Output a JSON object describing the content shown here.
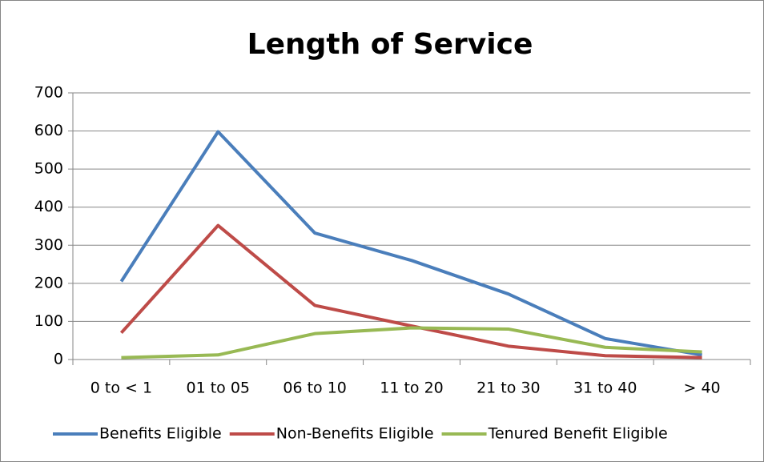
{
  "chart_data": {
    "type": "line",
    "title": "Length of Service",
    "categories": [
      "0 to < 1",
      "01 to 05",
      "06 to 10",
      "11 to 20",
      "21 to 30",
      "31 to 40",
      "> 40"
    ],
    "series": [
      {
        "name": "Benefits Eligible",
        "color": "#4a7ebb",
        "values": [
          205,
          598,
          332,
          260,
          172,
          55,
          12
        ]
      },
      {
        "name": "Non-Benefits Eligible",
        "color": "#be4b48",
        "values": [
          70,
          352,
          142,
          88,
          35,
          10,
          5
        ]
      },
      {
        "name": "Tenured Benefit Eligible",
        "color": "#98b954",
        "values": [
          5,
          12,
          68,
          83,
          80,
          32,
          20
        ]
      }
    ],
    "ylim": [
      0,
      700
    ],
    "yticks": [
      0,
      100,
      200,
      300,
      400,
      500,
      600,
      700
    ],
    "grid": true,
    "legend": "bottom"
  }
}
